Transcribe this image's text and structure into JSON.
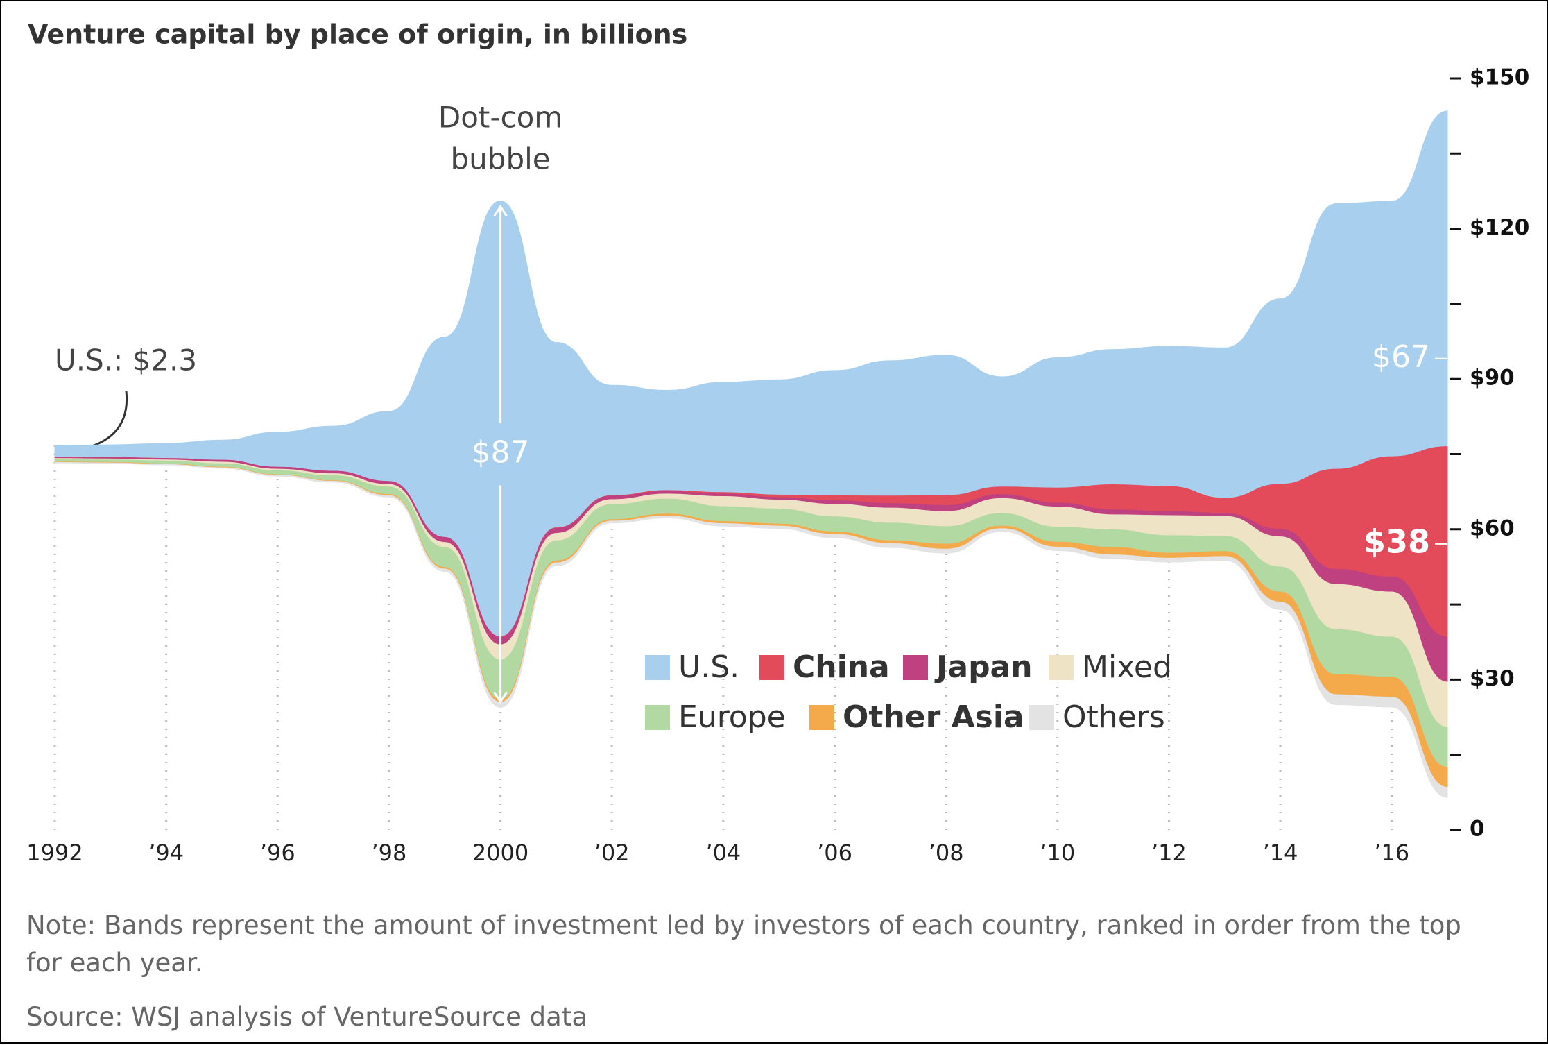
{
  "chart_data": {
    "type": "streamgraph",
    "title": "Venture capital by place of origin, in billions",
    "note": "Note: Bands represent the amount of investment led by investors of each country, ranked in order from the top for each year.",
    "source": "Source: WSJ analysis of VentureSource data",
    "x": [
      1992,
      1993,
      1994,
      1995,
      1996,
      1997,
      1998,
      1999,
      2000,
      2001,
      2002,
      2003,
      2004,
      2005,
      2006,
      2007,
      2008,
      2009,
      2010,
      2011,
      2012,
      2013,
      2014,
      2015,
      2016,
      2017
    ],
    "xlim": [
      1992,
      2017
    ],
    "xticks": [
      1992,
      {
        "value": 1994,
        "label": "’94"
      },
      {
        "value": 1996,
        "label": "’96"
      },
      {
        "value": 1998,
        "label": "’98"
      },
      2000,
      {
        "value": 2002,
        "label": "’02"
      },
      {
        "value": 2004,
        "label": "’04"
      },
      {
        "value": 2006,
        "label": "’06"
      },
      {
        "value": 2008,
        "label": "’08"
      },
      {
        "value": 2010,
        "label": "’10"
      },
      {
        "value": 2012,
        "label": "’12"
      },
      {
        "value": 2014,
        "label": "’14"
      },
      {
        "value": 2016,
        "label": "’16"
      }
    ],
    "ylim": [
      0,
      150
    ],
    "yticks": [
      0,
      {
        "value": 30,
        "label": "$30"
      },
      {
        "value": 60,
        "label": "$60"
      },
      {
        "value": 90,
        "label": "$90"
      },
      {
        "value": 120,
        "label": "$120"
      },
      {
        "value": 150,
        "label": "$150"
      }
    ],
    "yminorticks": [
      15,
      45,
      75,
      105,
      135
    ],
    "center": 75,
    "series": [
      {
        "name": "U.S.",
        "color": "#a8d0ee",
        "bold": false,
        "values": [
          2.3,
          2.5,
          3,
          4,
          7,
          9,
          14,
          40,
          87,
          37,
          22,
          20,
          22,
          23,
          25,
          27,
          28,
          22,
          26,
          27,
          28,
          30,
          37,
          53,
          51,
          67
        ],
        "value_labels": [
          null,
          null,
          null,
          null,
          null,
          null,
          null,
          null,
          "$87",
          null,
          null,
          null,
          null,
          null,
          null,
          null,
          null,
          null,
          null,
          null,
          null,
          null,
          null,
          null,
          null,
          "$67"
        ]
      },
      {
        "name": "China",
        "color": "#e34b5a",
        "bold": true,
        "values": [
          0,
          0,
          0,
          0,
          0,
          0,
          0,
          0,
          0.1,
          0.1,
          0.1,
          0.2,
          0.3,
          0.5,
          1,
          1.5,
          2,
          1.5,
          3,
          5,
          5,
          3,
          9,
          20,
          24,
          38
        ],
        "value_labels": [
          null,
          null,
          null,
          null,
          null,
          null,
          null,
          null,
          null,
          null,
          null,
          null,
          null,
          null,
          null,
          null,
          null,
          null,
          null,
          null,
          null,
          null,
          null,
          null,
          null,
          "$38"
        ]
      },
      {
        "name": "Japan",
        "color": "#c0417f",
        "bold": true,
        "values": [
          0.3,
          0.3,
          0.3,
          0.4,
          0.4,
          0.5,
          0.6,
          1,
          1.5,
          1,
          0.7,
          0.5,
          0.5,
          0.5,
          0.7,
          0.9,
          1.2,
          0.8,
          0.8,
          1,
          0.8,
          0.6,
          1.5,
          3,
          3,
          9
        ]
      },
      {
        "name": "Mixed",
        "color": "#efe3c6",
        "bold": false,
        "values": [
          0.2,
          0.2,
          0.2,
          0.3,
          0.3,
          0.4,
          0.5,
          1,
          3,
          1.5,
          1,
          1,
          2,
          1.8,
          2.5,
          3,
          3,
          3,
          4,
          3,
          4,
          4,
          6,
          9,
          9,
          9
        ]
      },
      {
        "name": "Europe",
        "color": "#b3d9a3",
        "bold": false,
        "values": [
          0.5,
          0.5,
          0.6,
          0.7,
          0.8,
          1,
          1.5,
          4,
          8,
          4,
          3,
          3,
          3,
          3,
          3,
          3.5,
          3.5,
          2.5,
          3,
          3.5,
          3.5,
          3,
          5,
          9,
          8,
          8
        ]
      },
      {
        "name": "Other Asia",
        "color": "#f4a94a",
        "bold": true,
        "values": [
          0.1,
          0.1,
          0.1,
          0.1,
          0.1,
          0.1,
          0.2,
          0.3,
          0.5,
          0.4,
          0.3,
          0.4,
          0.4,
          0.4,
          0.5,
          0.6,
          1,
          0.5,
          1,
          1.5,
          1,
          1,
          2,
          4,
          4,
          4
        ]
      },
      {
        "name": "Others",
        "color": "#e3e3e3",
        "bold": false,
        "values": [
          0.1,
          0.1,
          0.1,
          0.1,
          0.2,
          0.2,
          0.3,
          0.5,
          1,
          0.6,
          0.4,
          0.4,
          0.5,
          0.5,
          0.7,
          0.8,
          0.8,
          0.6,
          0.7,
          0.8,
          0.8,
          0.8,
          1.5,
          2,
          2,
          2
        ]
      }
    ],
    "annotations": [
      {
        "text": [
          "Dot-com",
          "bubble"
        ],
        "x": 2000
      },
      {
        "text": "U.S.: $2.3",
        "x": 1992
      }
    ]
  }
}
